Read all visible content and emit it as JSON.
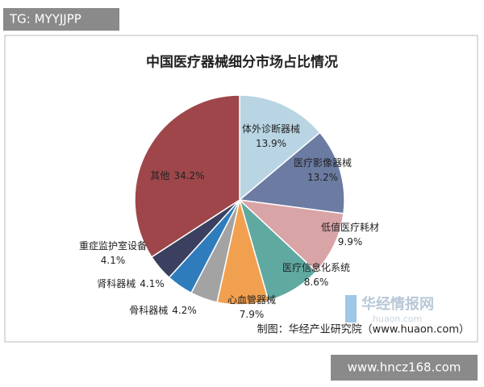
{
  "watermark": "TG: MYYJJPP",
  "chart_data": {
    "type": "pie",
    "title": "中国医疗器械细分市场占比情况",
    "categories": [
      "体外诊断器械",
      "医疗影像器械",
      "低值医疗耗材",
      "医疗信息化系统",
      "心血管器械",
      "骨科器械",
      "肾科器械",
      "重症监护室设备",
      "其他"
    ],
    "values": [
      13.9,
      13.2,
      9.9,
      8.6,
      7.9,
      4.2,
      4.1,
      4.1,
      34.2
    ],
    "value_labels": [
      "13.9%",
      "13.2%",
      "9.9%",
      "8.6%",
      "7.9%",
      "4.2%",
      "4.1%",
      "4.1%",
      "34.2%"
    ],
    "colors": [
      "#b9d5e4",
      "#6b7ba2",
      "#d9a4a6",
      "#5fa9a1",
      "#f1a04f",
      "#a3a3a3",
      "#2f7cbd",
      "#3b4060",
      "#9e4649"
    ],
    "source": "制图：华经产业研究院（www.huaon.com）"
  },
  "logo": {
    "name": "华经情报网",
    "domain": "huaon.com"
  },
  "footer": "www.hncz168.com"
}
